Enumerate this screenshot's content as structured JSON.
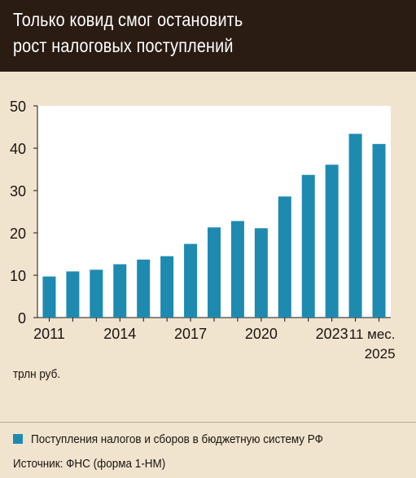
{
  "title_line1": "Только ковид смог остановить",
  "title_line2": "рост налоговых поступлений",
  "units": "трлн руб.",
  "legend_label": "Поступления налогов и сборов в бюджетную систему РФ",
  "source": "Источник: ФНС (форма 1-НМ)",
  "colors": {
    "bar": "#1e8ab0",
    "header_bg": "#2a1c13",
    "background": "#f1e4cf"
  },
  "chart_data": {
    "type": "bar",
    "categories": [
      "2011",
      "2012",
      "2013",
      "2014",
      "2015",
      "2016",
      "2017",
      "2018",
      "2019",
      "2020",
      "2021",
      "2022",
      "2023",
      "2024",
      "11 мес. 2025"
    ],
    "series": [
      {
        "name": "Поступления налогов и сборов в бюджетную систему РФ",
        "values": [
          9.7,
          10.9,
          11.3,
          12.6,
          13.7,
          14.5,
          17.4,
          21.3,
          22.8,
          21.1,
          28.6,
          33.7,
          36.1,
          43.4,
          41.0
        ]
      }
    ],
    "x_tick_labels": [
      "2011",
      "2014",
      "2017",
      "2020",
      "2023"
    ],
    "y_ticks": [
      0,
      10,
      20,
      30,
      40,
      50
    ],
    "ylim": [
      0,
      50
    ],
    "last_label_line1": "11 мес.",
    "last_label_line2": "2025",
    "grid": false,
    "legend_position": "bottom"
  }
}
